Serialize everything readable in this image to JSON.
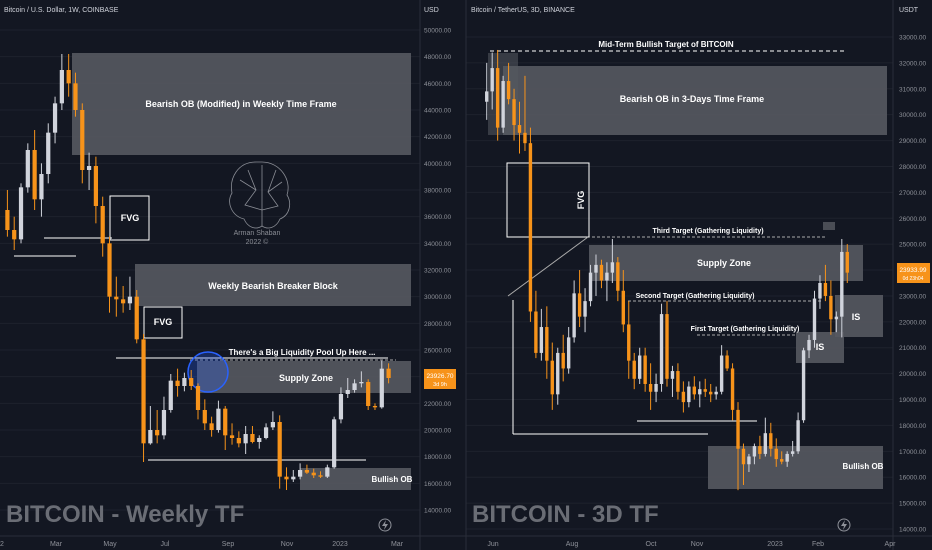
{
  "colors": {
    "bg": "#131722",
    "up": "#d1d4dc",
    "down": "#f7931a",
    "zone": "#565961",
    "text": "#d1d4dc",
    "axis": "#8e9199",
    "grid": "#1e222d",
    "highlight": "#f7931a",
    "circle": "#2962ff"
  },
  "left": {
    "title": "Bitcoin / U.S. Dollar, 1W, COINBASE",
    "watermark": "BITCOIN - Weekly TF",
    "axis_unit": "USD",
    "y_ticks": [
      "50000.00",
      "48000.00",
      "46000.00",
      "44000.00",
      "42000.00",
      "40000.00",
      "38000.00",
      "36000.00",
      "34000.00",
      "32000.00",
      "30000.00",
      "28000.00",
      "26000.00",
      "24000.00",
      "22000.00",
      "20000.00",
      "18000.00",
      "16000.00",
      "14000.00"
    ],
    "x_ticks": [
      "2",
      "Mar",
      "May",
      "Jul",
      "Sep",
      "Nov",
      "2023",
      "Mar"
    ],
    "price_label": "23926.70",
    "price_sub": "3d 9h",
    "zones": {
      "bearish_ob": "Bearish OB (Modified) in Weekly Time Frame",
      "breaker": "Weekly Bearish Breaker Block",
      "supply": "Supply Zone",
      "bullish": "Bullish OB",
      "fvg1": "FVG",
      "fvg2": "FVG"
    },
    "annotation": "There's a Big Liquidity Pool Up Here ...",
    "logo_name": "Arman Shaban",
    "logo_year": "2022 ©"
  },
  "right": {
    "title": "Bitcoin / TetherUS, 3D, BINANCE",
    "watermark": "BITCOIN - 3D TF",
    "axis_unit": "USDT",
    "y_ticks": [
      "33000.00",
      "32000.00",
      "31000.00",
      "30000.00",
      "29000.00",
      "28000.00",
      "27000.00",
      "26000.00",
      "25000.00",
      "24000.00",
      "23000.00",
      "22000.00",
      "21000.00",
      "20000.00",
      "19000.00",
      "18000.00",
      "17000.00",
      "16000.00",
      "15000.00",
      "14000.00"
    ],
    "x_ticks": [
      "Jun",
      "Aug",
      "Oct",
      "Nov",
      "2023",
      "Feb",
      "Apr"
    ],
    "price_label": "23933.99",
    "price_sub": "0d 23h04",
    "zones": {
      "bearish_ob": "Bearish OB in 3-Days Time Frame",
      "supply": "Supply Zone",
      "bullish": "Bullish OB",
      "fvg": "FVG",
      "is1": "IS",
      "is2": "IS"
    },
    "targets": {
      "mid": "Mid-Term Bullish Target of BITCOIN",
      "third": "Third Target (Gathering Liquidity)",
      "second": "Second Target (Gathering Liquidity)",
      "first": "First Target (Gathering Liquidity)"
    }
  },
  "chart_data": [
    {
      "type": "candlestick",
      "title": "Bitcoin / U.S. Dollar, 1W, COINBASE",
      "ylim": [
        13000,
        51000
      ],
      "ylabel": "USD",
      "candles": [
        [
          36500,
          38000,
          34500,
          35000
        ],
        [
          35000,
          36000,
          33500,
          34300
        ],
        [
          34300,
          38500,
          34000,
          38200
        ],
        [
          38200,
          41500,
          37800,
          41000
        ],
        [
          41000,
          42500,
          36500,
          37300
        ],
        [
          37300,
          40000,
          36000,
          39200
        ],
        [
          39200,
          43000,
          38500,
          42300
        ],
        [
          42300,
          45000,
          41500,
          44500
        ],
        [
          44500,
          48200,
          44000,
          47000
        ],
        [
          47000,
          48200,
          45000,
          46000
        ],
        [
          46000,
          46800,
          43500,
          44000
        ],
        [
          44000,
          44500,
          38500,
          39500
        ],
        [
          39500,
          40800,
          38000,
          39800
        ],
        [
          39800,
          40500,
          35500,
          36800
        ],
        [
          36800,
          37500,
          33000,
          34000
        ],
        [
          34000,
          34500,
          28800,
          30000
        ],
        [
          30000,
          31500,
          28500,
          29800
        ],
        [
          29800,
          30800,
          28800,
          29500
        ],
        [
          29500,
          31500,
          29000,
          30000
        ],
        [
          30000,
          30500,
          26500,
          26800
        ],
        [
          26800,
          27200,
          17600,
          19000
        ],
        [
          19000,
          21800,
          18900,
          20000
        ],
        [
          20000,
          21500,
          19000,
          19600
        ],
        [
          19600,
          22500,
          19300,
          21500
        ],
        [
          21500,
          24200,
          21300,
          23700
        ],
        [
          23700,
          24600,
          22500,
          23300
        ],
        [
          23300,
          24300,
          22900,
          23900
        ],
        [
          23900,
          24500,
          23000,
          23300
        ],
        [
          23300,
          23500,
          20800,
          21500
        ],
        [
          21500,
          22300,
          20000,
          20500
        ],
        [
          20500,
          21000,
          19500,
          20000
        ],
        [
          20000,
          22200,
          19800,
          21600
        ],
        [
          21600,
          21800,
          18500,
          19600
        ],
        [
          19600,
          20500,
          18900,
          19400
        ],
        [
          19400,
          19900,
          18700,
          19000
        ],
        [
          19000,
          20300,
          18200,
          19700
        ],
        [
          19700,
          20300,
          19000,
          19100
        ],
        [
          19100,
          19600,
          18600,
          19400
        ],
        [
          19400,
          20500,
          19300,
          20200
        ],
        [
          20200,
          21400,
          20000,
          20600
        ],
        [
          20600,
          21100,
          15600,
          16500
        ],
        [
          16500,
          17200,
          15500,
          16300
        ],
        [
          16300,
          17000,
          16100,
          16500
        ],
        [
          16500,
          17500,
          16300,
          17000
        ],
        [
          17000,
          17400,
          16700,
          16800
        ],
        [
          16800,
          17100,
          16400,
          16600
        ],
        [
          16600,
          16900,
          16400,
          16500
        ],
        [
          16500,
          17400,
          16400,
          17200
        ],
        [
          17200,
          21000,
          17100,
          20800
        ],
        [
          20800,
          23200,
          20500,
          22700
        ],
        [
          22700,
          23900,
          22400,
          23000
        ],
        [
          23000,
          23800,
          22800,
          23500
        ],
        [
          23500,
          24400,
          23200,
          23600
        ],
        [
          23600,
          23800,
          21500,
          21800
        ],
        [
          21800,
          22000,
          21500,
          21700
        ],
        [
          21700,
          25200,
          21600,
          24600
        ],
        [
          24600,
          25000,
          23500,
          23900
        ]
      ]
    },
    {
      "type": "candlestick",
      "title": "Bitcoin / TetherUS, 3D, BINANCE",
      "ylim": [
        13600,
        34000
      ],
      "ylabel": "USDT",
      "candles": [
        [
          30500,
          32000,
          29800,
          30900
        ],
        [
          30900,
          32400,
          30200,
          31800
        ],
        [
          31800,
          32500,
          29000,
          29500
        ],
        [
          29500,
          31500,
          29300,
          31300
        ],
        [
          31300,
          32000,
          30400,
          30600
        ],
        [
          30600,
          31000,
          29000,
          29600
        ],
        [
          29600,
          30500,
          28500,
          29300
        ],
        [
          29300,
          31500,
          28600,
          28900
        ],
        [
          28900,
          29500,
          22000,
          22400
        ],
        [
          22400,
          23200,
          20600,
          20800
        ],
        [
          20800,
          22500,
          20500,
          21800
        ],
        [
          21800,
          22600,
          19800,
          20500
        ],
        [
          20500,
          21200,
          18600,
          19200
        ],
        [
          19200,
          21000,
          18800,
          20800
        ],
        [
          20800,
          21500,
          19700,
          20200
        ],
        [
          20200,
          21800,
          20000,
          21400
        ],
        [
          21400,
          23600,
          21200,
          23100
        ],
        [
          23100,
          24000,
          21800,
          22200
        ],
        [
          22200,
          23300,
          21600,
          22800
        ],
        [
          22800,
          24200,
          22600,
          23900
        ],
        [
          23900,
          24600,
          23000,
          24200
        ],
        [
          24200,
          24400,
          23300,
          23600
        ],
        [
          23600,
          24300,
          22800,
          23900
        ],
        [
          23900,
          25200,
          23500,
          24300
        ],
        [
          24300,
          24500,
          22800,
          23200
        ],
        [
          23200,
          24000,
          21600,
          21900
        ],
        [
          21900,
          22800,
          19800,
          20500
        ],
        [
          20500,
          20800,
          19400,
          19800
        ],
        [
          19800,
          21000,
          19600,
          20700
        ],
        [
          20700,
          21000,
          19300,
          19600
        ],
        [
          19600,
          20400,
          18600,
          19300
        ],
        [
          19300,
          20000,
          18900,
          19600
        ],
        [
          19600,
          22700,
          19300,
          22300
        ],
        [
          22300,
          22800,
          19500,
          19800
        ],
        [
          19800,
          20300,
          19100,
          20100
        ],
        [
          20100,
          20400,
          19000,
          19300
        ],
        [
          19300,
          19700,
          18500,
          18900
        ],
        [
          18900,
          19700,
          18700,
          19500
        ],
        [
          19500,
          19900,
          19000,
          19200
        ],
        [
          19200,
          19700,
          18700,
          19400
        ],
        [
          19400,
          19800,
          19100,
          19300
        ],
        [
          19300,
          19600,
          18900,
          19200
        ],
        [
          19200,
          19500,
          19000,
          19300
        ],
        [
          19300,
          21100,
          19200,
          20700
        ],
        [
          20700,
          20900,
          20100,
          20200
        ],
        [
          20200,
          20400,
          18200,
          18600
        ],
        [
          18600,
          18900,
          15500,
          17100
        ],
        [
          17100,
          17300,
          15700,
          16500
        ],
        [
          16500,
          16900,
          16200,
          16800
        ],
        [
          16800,
          17300,
          16500,
          17200
        ],
        [
          17200,
          17600,
          16700,
          16900
        ],
        [
          16900,
          18300,
          16800,
          17700
        ],
        [
          17700,
          18100,
          16800,
          17100
        ],
        [
          17100,
          17500,
          16400,
          16700
        ],
        [
          16700,
          17000,
          16500,
          16600
        ],
        [
          16600,
          17000,
          16400,
          16900
        ],
        [
          16900,
          17400,
          16800,
          17000
        ],
        [
          17000,
          18500,
          16900,
          18200
        ],
        [
          18200,
          21000,
          18100,
          20900
        ],
        [
          20900,
          21500,
          20600,
          21300
        ],
        [
          21300,
          23200,
          21000,
          22900
        ],
        [
          22900,
          23800,
          22500,
          23500
        ],
        [
          23500,
          24200,
          22800,
          23000
        ],
        [
          23000,
          23600,
          21500,
          22100
        ],
        [
          22100,
          22400,
          21600,
          22200
        ],
        [
          22200,
          25200,
          21400,
          24700
        ],
        [
          24700,
          25000,
          23500,
          23900
        ]
      ]
    }
  ]
}
